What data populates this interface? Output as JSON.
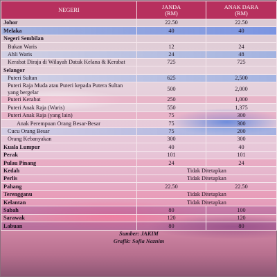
{
  "table": {
    "headers": [
      "NEGERI",
      "JANDA\n(RM)",
      "ANAK DARA\n(RM)"
    ],
    "rows": [
      {
        "type": "state",
        "negeri": "Johor",
        "janda": "22.50",
        "anak_dara": "22.50"
      },
      {
        "type": "state",
        "negeri": "Melaka",
        "janda": "40",
        "anak_dara": "40",
        "tone": "blue"
      },
      {
        "type": "state",
        "negeri": "Negeri Sembilan",
        "janda": "",
        "anak_dara": ""
      },
      {
        "type": "sub",
        "negeri": "Bukan Waris",
        "janda": "12",
        "anak_dara": "24"
      },
      {
        "type": "sub",
        "negeri": "Ahli Waris",
        "janda": "24",
        "anak_dara": "48",
        "tone": "lightblue"
      },
      {
        "type": "sub",
        "negeri": "Kerabat Diraja di Wilayah Datuk Kelana & Kerabat",
        "janda": "725",
        "anak_dara": "725"
      },
      {
        "type": "state",
        "negeri": "Selangor",
        "janda": "",
        "anak_dara": ""
      },
      {
        "type": "sub",
        "negeri": "Puteri Sultan",
        "janda": "625",
        "anak_dara": "2,500",
        "tone": "lightblue"
      },
      {
        "type": "sub",
        "negeri": "Puteri Raja Muda atau Puteri kepada Putera Sultan yang bergelar",
        "janda": "500",
        "anak_dara": "2,000"
      },
      {
        "type": "sub",
        "negeri": "Puteri Kerabat",
        "janda": "250",
        "anak_dara": "1,000",
        "tone": "pinkhl"
      },
      {
        "type": "sub",
        "negeri": "Puteri Anak Raja (Waris)",
        "janda": "550",
        "anak_dara": "1,375"
      },
      {
        "type": "sub",
        "negeri": "Puteri Anak Raja (yang lain)",
        "janda": "75",
        "anak_dara": "300",
        "tone": "pinkhl"
      },
      {
        "type": "sub2",
        "negeri": "Anak Perempuan Orang Besar-Besar",
        "janda": "75",
        "anak_dara": "300"
      },
      {
        "type": "sub",
        "negeri": "Cucu Orang Besar",
        "janda": "75",
        "anak_dara": "200",
        "tone": "lightblue"
      },
      {
        "type": "sub",
        "negeri": "Orang Kebanyakan",
        "janda": "300",
        "anak_dara": "300"
      },
      {
        "type": "state",
        "negeri": "Kuala Lumpur",
        "janda": "40",
        "anak_dara": "40"
      },
      {
        "type": "state",
        "negeri": "Perak",
        "janda": "101",
        "anak_dara": "101"
      },
      {
        "type": "state",
        "negeri": "Pulau Pinang",
        "janda": "24",
        "anak_dara": "24",
        "tone": "pinkhl"
      },
      {
        "type": "state",
        "negeri": "Kedah",
        "merged": "Tidak Ditetapkan"
      },
      {
        "type": "state",
        "negeri": "Perlis",
        "merged": "Tidak Ditetapkan"
      },
      {
        "type": "state",
        "negeri": "Pahang",
        "janda": "22.50",
        "anak_dara": "22.50"
      },
      {
        "type": "state",
        "negeri": "Terengganu",
        "merged": "Tidak Ditetapkan",
        "tone": "pinkhl"
      },
      {
        "type": "state",
        "negeri": "Kelantan",
        "merged": "Tidak Ditetapkan"
      },
      {
        "type": "state",
        "negeri": "Sabah",
        "janda": "80",
        "anak_dara": "100",
        "tone": "purp"
      },
      {
        "type": "state",
        "negeri": "Sarawak",
        "janda": "120",
        "anak_dara": "120"
      },
      {
        "type": "state",
        "negeri": "Labuan",
        "janda": "80",
        "anak_dara": "80",
        "tone": "purp"
      }
    ],
    "footer": [
      "Sumber: JAKIM",
      "Grafik: Sofia Naznim"
    ]
  }
}
